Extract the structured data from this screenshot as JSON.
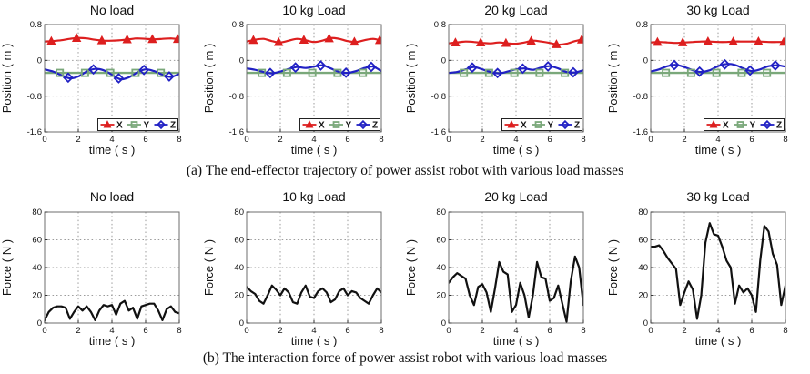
{
  "page": {
    "background": "#ffffff"
  },
  "captions": {
    "a": "(a) The end-effector trajectory of power assist robot with various load masses",
    "b": "(b) The interaction force of power assist robot with various load masses"
  },
  "colors": {
    "x": "#dd1f1f",
    "y": "#7aa87a",
    "z": "#2121c4",
    "force": "#111111",
    "grid": "#9b9b9b",
    "frame": "#6e6e6e",
    "tick": "#333333",
    "text": "#111111"
  },
  "chart_data": [
    {
      "id": "pos-no-load",
      "kind": "position",
      "type": "line",
      "title": "No load",
      "xlabel": "time ( s )",
      "ylabel": "Position ( m )",
      "xlim": [
        0,
        8
      ],
      "ylim": [
        -1.6,
        0.8
      ],
      "xticks": [
        0,
        2,
        4,
        6,
        8
      ],
      "yticks": [
        0.8,
        0,
        -0.8,
        -1.6
      ],
      "grid": true,
      "legend": true,
      "legend_position": "bottom-right",
      "series": [
        {
          "name": "Y",
          "color_key": "y",
          "marker": "square",
          "smooth": false,
          "width": 2.4,
          "x0": 0,
          "dx": 8,
          "y": [
            -0.28,
            -0.28
          ],
          "marker_t": [
            0.9,
            2.4,
            3.9,
            5.4,
            6.9
          ]
        },
        {
          "name": "Z",
          "color_key": "z",
          "marker": "diamond",
          "smooth": true,
          "width": 2.2,
          "x0": 0,
          "dx": 0.5,
          "y": [
            -0.2,
            -0.25,
            -0.33,
            -0.4,
            -0.36,
            -0.25,
            -0.19,
            -0.22,
            -0.32,
            -0.42,
            -0.38,
            -0.27,
            -0.2,
            -0.24,
            -0.32,
            -0.37,
            -0.3
          ],
          "marker_t": [
            1.4,
            2.9,
            4.4,
            5.9,
            7.4
          ]
        },
        {
          "name": "X",
          "color_key": "x",
          "marker": "triangle",
          "smooth": true,
          "width": 2.2,
          "x0": 0,
          "dx": 0.5,
          "y": [
            0.42,
            0.43,
            0.45,
            0.48,
            0.5,
            0.49,
            0.46,
            0.44,
            0.44,
            0.45,
            0.47,
            0.49,
            0.48,
            0.47,
            0.48,
            0.49,
            0.47
          ],
          "marker_t": [
            0.4,
            1.9,
            3.4,
            4.9,
            6.4,
            7.9
          ]
        }
      ],
      "legend_order": [
        "X",
        "Y",
        "Z"
      ]
    },
    {
      "id": "pos-10kg",
      "kind": "position",
      "type": "line",
      "title": "10 kg Load",
      "xlabel": "time ( s )",
      "ylabel": "Position ( m )",
      "xlim": [
        0,
        8
      ],
      "ylim": [
        -1.6,
        0.8
      ],
      "xticks": [
        0,
        2,
        4,
        6,
        8
      ],
      "yticks": [
        0.8,
        0,
        -0.8,
        -1.6
      ],
      "grid": true,
      "legend": true,
      "legend_position": "bottom-right",
      "series": [
        {
          "name": "Y",
          "color_key": "y",
          "marker": "square",
          "smooth": false,
          "width": 2.4,
          "x0": 0,
          "dx": 8,
          "y": [
            -0.28,
            -0.28
          ],
          "marker_t": [
            0.9,
            2.4,
            3.9,
            5.4,
            6.9
          ]
        },
        {
          "name": "Z",
          "color_key": "z",
          "marker": "diamond",
          "smooth": true,
          "width": 2.2,
          "x0": 0,
          "dx": 0.5,
          "y": [
            -0.18,
            -0.21,
            -0.26,
            -0.29,
            -0.25,
            -0.19,
            -0.15,
            -0.17,
            -0.14,
            -0.11,
            -0.18,
            -0.26,
            -0.28,
            -0.24,
            -0.17,
            -0.14,
            -0.24
          ],
          "marker_t": [
            1.4,
            2.9,
            4.4,
            5.9,
            7.4
          ]
        },
        {
          "name": "X",
          "color_key": "x",
          "marker": "triangle",
          "smooth": true,
          "width": 2.2,
          "x0": 0,
          "dx": 0.5,
          "y": [
            0.42,
            0.46,
            0.48,
            0.43,
            0.4,
            0.44,
            0.48,
            0.45,
            0.41,
            0.44,
            0.5,
            0.48,
            0.43,
            0.41,
            0.45,
            0.48,
            0.44
          ],
          "marker_t": [
            0.4,
            1.9,
            3.4,
            4.9,
            6.4,
            7.9
          ]
        }
      ],
      "legend_order": [
        "X",
        "Y",
        "Z"
      ]
    },
    {
      "id": "pos-20kg",
      "kind": "position",
      "type": "line",
      "title": "20 kg Load",
      "xlabel": "time ( s )",
      "ylabel": "Position ( m )",
      "xlim": [
        0,
        8
      ],
      "ylim": [
        -1.6,
        0.8
      ],
      "xticks": [
        0,
        2,
        4,
        6,
        8
      ],
      "yticks": [
        0.8,
        0,
        -0.8,
        -1.6
      ],
      "grid": true,
      "legend": true,
      "legend_position": "bottom-right",
      "series": [
        {
          "name": "Y",
          "color_key": "y",
          "marker": "square",
          "smooth": false,
          "width": 2.4,
          "x0": 0,
          "dx": 8,
          "y": [
            -0.28,
            -0.28
          ],
          "marker_t": [
            0.9,
            2.4,
            3.9,
            5.4,
            6.9
          ]
        },
        {
          "name": "Z",
          "color_key": "z",
          "marker": "diamond",
          "smooth": true,
          "width": 2.2,
          "x0": 0,
          "dx": 0.5,
          "y": [
            -0.28,
            -0.26,
            -0.2,
            -0.15,
            -0.2,
            -0.26,
            -0.29,
            -0.25,
            -0.2,
            -0.18,
            -0.21,
            -0.16,
            -0.13,
            -0.18,
            -0.26,
            -0.27,
            -0.22
          ],
          "marker_t": [
            1.4,
            2.9,
            4.4,
            5.9,
            7.4
          ]
        },
        {
          "name": "X",
          "color_key": "x",
          "marker": "triangle",
          "smooth": true,
          "width": 2.2,
          "x0": 0,
          "dx": 0.5,
          "y": [
            0.38,
            0.4,
            0.42,
            0.41,
            0.39,
            0.38,
            0.4,
            0.38,
            0.37,
            0.4,
            0.44,
            0.42,
            0.39,
            0.35,
            0.37,
            0.43,
            0.47
          ],
          "marker_t": [
            0.4,
            1.9,
            3.4,
            4.9,
            6.4,
            7.9
          ]
        }
      ],
      "legend_order": [
        "X",
        "Y",
        "Z"
      ]
    },
    {
      "id": "pos-30kg",
      "kind": "position",
      "type": "line",
      "title": "30 kg Load",
      "xlabel": "time ( s )",
      "ylabel": "Position ( m )",
      "xlim": [
        0,
        8
      ],
      "ylim": [
        -1.6,
        0.8
      ],
      "xticks": [
        0,
        2,
        4,
        6,
        8
      ],
      "yticks": [
        0.8,
        0,
        -0.8,
        -1.6
      ],
      "grid": true,
      "legend": true,
      "legend_position": "bottom-right",
      "series": [
        {
          "name": "Y",
          "color_key": "y",
          "marker": "square",
          "smooth": false,
          "width": 2.4,
          "x0": 0,
          "dx": 8,
          "y": [
            -0.28,
            -0.28
          ],
          "marker_t": [
            0.9,
            2.4,
            3.9,
            5.4,
            6.9
          ]
        },
        {
          "name": "Z",
          "color_key": "z",
          "marker": "diamond",
          "smooth": true,
          "width": 2.2,
          "x0": 0,
          "dx": 0.5,
          "y": [
            -0.25,
            -0.2,
            -0.13,
            -0.1,
            -0.15,
            -0.22,
            -0.26,
            -0.22,
            -0.13,
            -0.08,
            -0.1,
            -0.18,
            -0.24,
            -0.2,
            -0.13,
            -0.11,
            -0.14
          ],
          "marker_t": [
            1.4,
            2.9,
            4.4,
            5.9,
            7.4
          ]
        },
        {
          "name": "X",
          "color_key": "x",
          "marker": "triangle",
          "smooth": true,
          "width": 2.2,
          "x0": 0,
          "dx": 0.5,
          "y": [
            0.4,
            0.41,
            0.4,
            0.39,
            0.4,
            0.41,
            0.42,
            0.42,
            0.41,
            0.41,
            0.42,
            0.42,
            0.42,
            0.42,
            0.41,
            0.41,
            0.41
          ],
          "marker_t": [
            0.4,
            1.9,
            3.4,
            4.9,
            6.4,
            7.9
          ]
        }
      ],
      "legend_order": [
        "X",
        "Y",
        "Z"
      ]
    },
    {
      "id": "force-no-load",
      "kind": "force",
      "type": "line",
      "title": "No load",
      "xlabel": "time ( s )",
      "ylabel": "Force ( N )",
      "xlim": [
        0,
        8
      ],
      "ylim": [
        0,
        80
      ],
      "xticks": [
        0,
        2,
        4,
        6,
        8
      ],
      "yticks": [
        0,
        20,
        40,
        60,
        80
      ],
      "grid": true,
      "legend": false,
      "series": [
        {
          "name": "force",
          "color_key": "force",
          "marker": null,
          "smooth": false,
          "width": 2.2,
          "x0": 0,
          "dx": 0.25,
          "y": [
            2,
            8,
            11,
            12,
            12,
            11,
            3,
            8,
            12,
            9,
            12,
            8,
            2,
            9,
            13,
            12,
            13,
            6,
            14,
            16,
            9,
            11,
            3,
            12,
            13,
            14,
            14,
            9,
            2,
            10,
            12,
            8,
            7
          ]
        }
      ]
    },
    {
      "id": "force-10kg",
      "kind": "force",
      "type": "line",
      "title": "10 kg Load",
      "xlabel": "time ( s )",
      "ylabel": "Force ( N )",
      "xlim": [
        0,
        8
      ],
      "ylim": [
        0,
        80
      ],
      "xticks": [
        0,
        2,
        4,
        6,
        8
      ],
      "yticks": [
        0,
        20,
        40,
        60,
        80
      ],
      "grid": true,
      "legend": false,
      "series": [
        {
          "name": "force",
          "color_key": "force",
          "marker": null,
          "smooth": false,
          "width": 2.2,
          "x0": 0,
          "dx": 0.25,
          "y": [
            26,
            23,
            21,
            16,
            14,
            20,
            27,
            24,
            20,
            25,
            22,
            15,
            14,
            22,
            27,
            19,
            18,
            23,
            25,
            22,
            15,
            17,
            23,
            25,
            20,
            23,
            22,
            18,
            16,
            14,
            20,
            25,
            22
          ]
        }
      ]
    },
    {
      "id": "force-20kg",
      "kind": "force",
      "type": "line",
      "title": "20 kg Load",
      "xlabel": "time ( s )",
      "ylabel": "Force ( N )",
      "xlim": [
        0,
        8
      ],
      "ylim": [
        0,
        80
      ],
      "xticks": [
        0,
        2,
        4,
        6,
        8
      ],
      "yticks": [
        0,
        20,
        40,
        60,
        80
      ],
      "grid": true,
      "legend": false,
      "series": [
        {
          "name": "force",
          "color_key": "force",
          "marker": null,
          "smooth": false,
          "width": 2.2,
          "x0": 0,
          "dx": 0.25,
          "y": [
            29,
            33,
            36,
            34,
            32,
            20,
            13,
            26,
            28,
            22,
            8,
            25,
            44,
            37,
            35,
            8,
            13,
            29,
            20,
            4,
            20,
            44,
            33,
            32,
            16,
            18,
            27,
            14,
            1,
            30,
            48,
            40,
            13
          ]
        }
      ]
    },
    {
      "id": "force-30kg",
      "kind": "force",
      "type": "line",
      "title": "30 kg Load",
      "xlabel": "time ( s )",
      "ylabel": "Force ( N )",
      "xlim": [
        0,
        8
      ],
      "ylim": [
        0,
        80
      ],
      "xticks": [
        0,
        2,
        4,
        6,
        8
      ],
      "yticks": [
        0,
        20,
        40,
        60,
        80
      ],
      "grid": true,
      "legend": false,
      "series": [
        {
          "name": "force",
          "color_key": "force",
          "marker": null,
          "smooth": false,
          "width": 2.2,
          "x0": 0,
          "dx": 0.25,
          "y": [
            55,
            55,
            56,
            52,
            47,
            43,
            39,
            13,
            22,
            30,
            24,
            3,
            20,
            58,
            72,
            64,
            63,
            55,
            45,
            40,
            14,
            27,
            22,
            25,
            20,
            8,
            45,
            70,
            66,
            50,
            42,
            13,
            27
          ]
        }
      ]
    }
  ]
}
